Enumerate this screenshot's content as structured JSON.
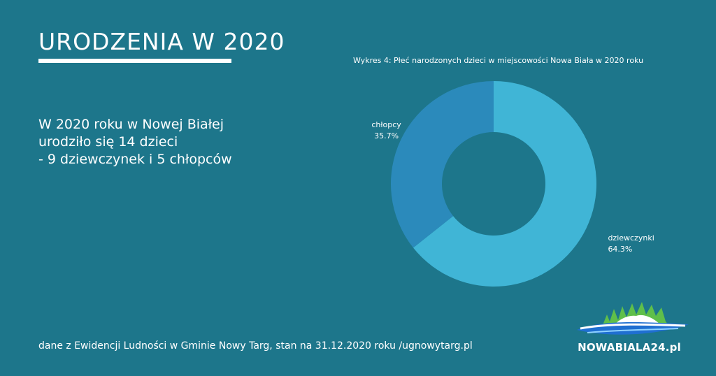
{
  "header": {
    "title": "URODZENIA W 2020"
  },
  "summary": {
    "line1": "W 2020 roku w Nowej Białej",
    "line2": "urodziło się 14 dzieci",
    "line3": "- 9 dziewczynek i 5 chłopców"
  },
  "footer": {
    "source": "dane z Ewidencji Ludności w Gminie Nowy Targ, stan na 31.12.2020 roku /ugnowytarg.pl"
  },
  "logo": {
    "text": "NOWABIALA24.pl"
  },
  "chart_data": {
    "type": "pie",
    "title": "Wykres 4: Płeć narodzonych dzieci w miejscowości Nowa Biała w 2020 roku",
    "donut": true,
    "slices": [
      {
        "label": "dziewczynki",
        "value": 64.3,
        "value_label": "64.3%",
        "color": "#40b5d6"
      },
      {
        "label": "chłopcy",
        "value": 35.7,
        "value_label": "35.7%",
        "color": "#2b8abb"
      }
    ]
  },
  "colors": {
    "background": "#1d768b",
    "text": "#ffffff"
  }
}
